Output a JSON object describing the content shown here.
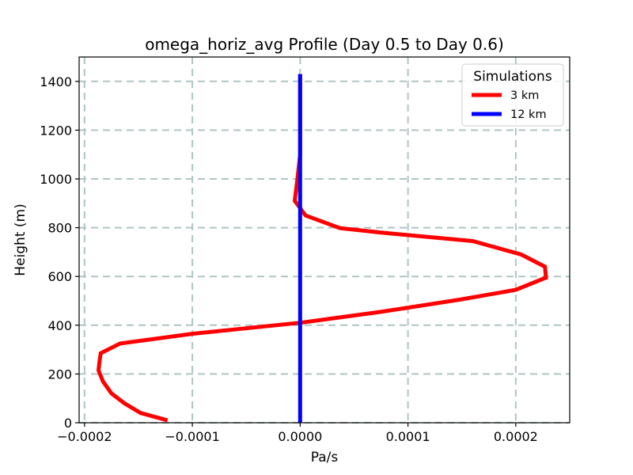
{
  "chart_data": {
    "type": "line",
    "title": "omega_horiz_avg Profile (Day 0.5 to Day 0.6)",
    "xlabel": "Pa/s",
    "ylabel": "Height (m)",
    "xlim": [
      -0.000205,
      0.00025
    ],
    "ylim": [
      0,
      1500
    ],
    "xticks": [
      -0.0002,
      -0.0001,
      0.0,
      0.0001,
      0.0002
    ],
    "xtick_labels": [
      "−0.0002",
      "−0.0001",
      "0.0000",
      "0.0001",
      "0.0002"
    ],
    "yticks": [
      0,
      200,
      400,
      600,
      800,
      1000,
      1200,
      1400
    ],
    "ytick_labels": [
      "0",
      "200",
      "400",
      "600",
      "800",
      "1000",
      "1200",
      "1400"
    ],
    "grid": true,
    "legend": {
      "title": "Simulations",
      "placement": "top-right"
    },
    "series": [
      {
        "name": "3 km",
        "color": "#ff0000",
        "points": [
          [
            -0.000123,
            10
          ],
          [
            -0.000148,
            40
          ],
          [
            -0.000163,
            80
          ],
          [
            -0.000175,
            120
          ],
          [
            -0.000183,
            170
          ],
          [
            -0.000187,
            215
          ],
          [
            -0.000186,
            255
          ],
          [
            -0.000185,
            285
          ],
          [
            -0.000167,
            325
          ],
          [
            -0.0001,
            365
          ],
          [
            0.0,
            410
          ],
          [
            7.5e-05,
            455
          ],
          [
            0.000148,
            505
          ],
          [
            0.0002,
            545
          ],
          [
            0.000228,
            595
          ],
          [
            0.000227,
            640
          ],
          [
            0.000205,
            690
          ],
          [
            0.00016,
            745
          ],
          [
            7.5e-05,
            780
          ],
          [
            3.7e-05,
            798
          ],
          [
            5e-06,
            850
          ],
          [
            -5e-06,
            910
          ],
          [
            -2.5e-06,
            1000
          ],
          [
            0.0,
            1100
          ],
          [
            0.0,
            1250
          ],
          [
            0.0,
            1430
          ]
        ]
      },
      {
        "name": "12 km",
        "color": "#0000ff",
        "points": [
          [
            0.0,
            0
          ],
          [
            0.0,
            200
          ],
          [
            0.0,
            400
          ],
          [
            0.0,
            600
          ],
          [
            0.0,
            800
          ],
          [
            0.0,
            1000
          ],
          [
            0.0,
            1200
          ],
          [
            0.0,
            1430
          ]
        ]
      }
    ]
  }
}
